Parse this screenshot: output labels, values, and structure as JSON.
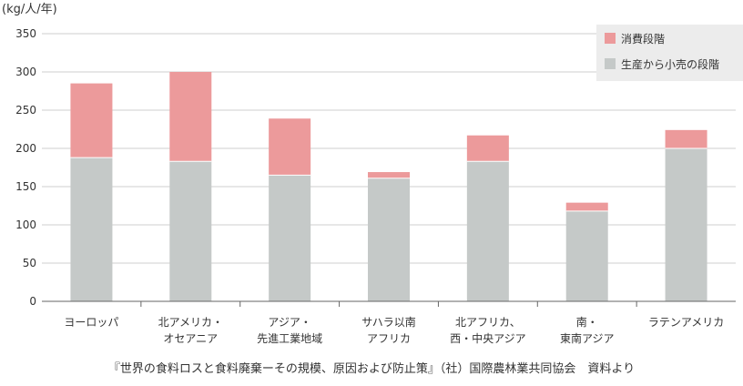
{
  "chart_data": {
    "type": "bar",
    "stacked": true,
    "unit_label": "(kg/人/年)",
    "categories": [
      [
        "ヨーロッパ"
      ],
      [
        "北アメリカ・",
        "オセアニア"
      ],
      [
        "アジア・",
        "先進工業地域"
      ],
      [
        "サハラ以南",
        "アフリカ"
      ],
      [
        "北アフリカ、",
        "西・中央アジア"
      ],
      [
        "南・",
        "東南アジア"
      ],
      [
        "ラテンアメリカ"
      ]
    ],
    "series": [
      {
        "name": "生産から小売の段階",
        "color": "#c5c9c8",
        "values": [
          188,
          183,
          165,
          161,
          183,
          118,
          200
        ]
      },
      {
        "name": "消費段階",
        "color": "#ec9a9b",
        "values": [
          97,
          117,
          74,
          8,
          34,
          11,
          24
        ]
      }
    ],
    "ylim": [
      0,
      350
    ],
    "yticks": [
      0,
      50,
      100,
      150,
      200,
      250,
      300,
      350
    ],
    "grid": true,
    "legend_position": "top-right",
    "legend_order": [
      "消費段階",
      "生産から小売の段階"
    ]
  },
  "source_note": "『世界の食料ロスと食料廃棄ーその規模、原因および防止策』（社）国際農林業共同協会　資料より"
}
